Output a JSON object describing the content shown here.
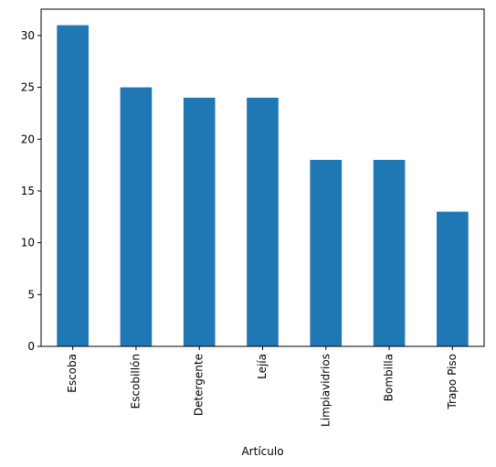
{
  "chart_data": {
    "type": "bar",
    "categories": [
      "Escoba",
      "Escobillón",
      "Detergente",
      "Lejía",
      "Limpiavidrios",
      "Bombilla",
      "Trapo Piso"
    ],
    "values": [
      31,
      25,
      24,
      24,
      18,
      18,
      13
    ],
    "xlabel": "Artículo",
    "ylabel": "",
    "ylim": [
      0,
      32.55
    ],
    "yticks": [
      0,
      5,
      10,
      15,
      20,
      25,
      30
    ],
    "bar_color": "#1f77b4",
    "grid": false,
    "legend": "none"
  }
}
